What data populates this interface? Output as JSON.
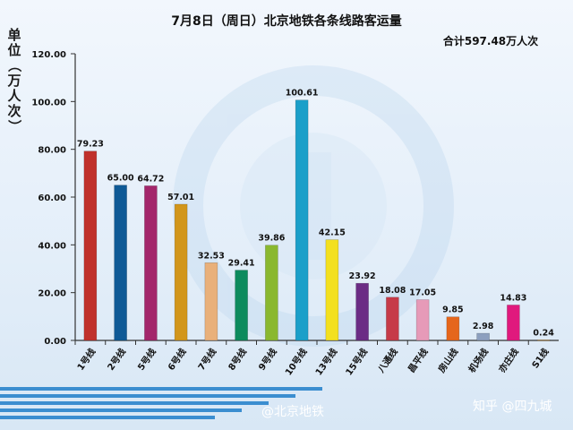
{
  "chart_data": {
    "type": "bar",
    "title": "7月8日（周日）北京地铁各条线路客运量",
    "subtitle": "合计597.48万人次",
    "ylabel": "单位（万人次）",
    "xlabel": "",
    "ylim": [
      0,
      120
    ],
    "yticks": [
      "0.00",
      "20.00",
      "40.00",
      "60.00",
      "80.00",
      "100.00",
      "120.00"
    ],
    "grid": false,
    "categories": [
      "1号线",
      "2号线",
      "5号线",
      "6号线",
      "7号线",
      "8号线",
      "9号线",
      "10号线",
      "13号线",
      "15号线",
      "八通线",
      "昌平线",
      "房山线",
      "机场线",
      "亦庄线",
      "S1线"
    ],
    "values": [
      79.23,
      65.0,
      64.72,
      57.01,
      32.53,
      29.41,
      39.86,
      100.61,
      42.15,
      23.92,
      18.08,
      17.05,
      9.85,
      2.98,
      14.83,
      0.24
    ],
    "value_labels": [
      "79.23",
      "65.00",
      "64.72",
      "57.01",
      "32.53",
      "29.41",
      "39.86",
      "100.61",
      "42.15",
      "23.92",
      "18.08",
      "17.05",
      "9.85",
      "2.98",
      "14.83",
      "0.24"
    ],
    "colors": [
      "#c0312b",
      "#0f5a96",
      "#a3266b",
      "#d2961b",
      "#e9b07a",
      "#0d8b5d",
      "#8ab82f",
      "#1b9fc9",
      "#f3e01f",
      "#6b2c85",
      "#c63a48",
      "#e69ab8",
      "#e5661c",
      "#8c9fbf",
      "#e0197d",
      "#b3894a"
    ]
  },
  "watermarks": {
    "weibo": "@北京地铁",
    "zhihu": "知乎 @四九城"
  }
}
